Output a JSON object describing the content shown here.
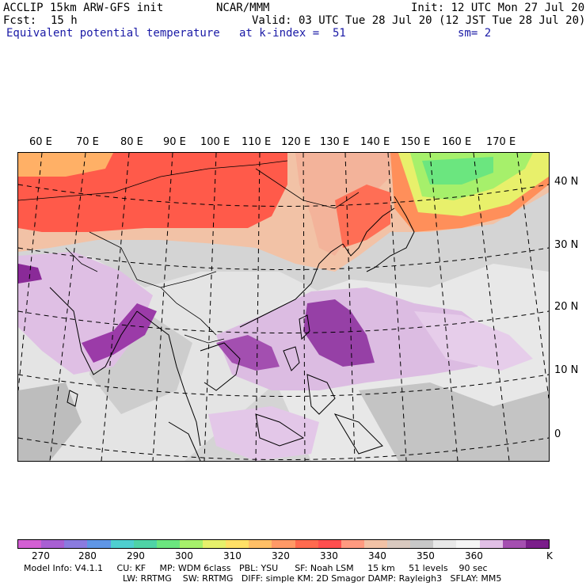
{
  "header": {
    "model": "ACCLIP 15km ARW-GFS init",
    "org": "NCAR/MMM",
    "init": "Init: 12 UTC Mon 27 Jul 20",
    "fcst_label": "Fcst:",
    "fcst_value": "15 h",
    "valid": "Valid: 03 UTC Tue 28 Jul 20 (12 JST Tue 28 Jul 20)",
    "field": "Equivalent potential temperature",
    "level": "at k-index =  51",
    "smooth": "sm= 2"
  },
  "map": {
    "lon_labels": [
      "60 E",
      "70 E",
      "80 E",
      "90 E",
      "100 E",
      "110 E",
      "120 E",
      "130 E",
      "140 E",
      "150 E",
      "160 E",
      "170 E"
    ],
    "lat_labels": [
      "40 N",
      "30 N",
      "20 N",
      "10 N",
      "0"
    ]
  },
  "colorbar": {
    "colors": [
      "#d35fd3",
      "#a85fd3",
      "#8a7be0",
      "#5f96e6",
      "#4fcfcf",
      "#4fd3a6",
      "#6be67f",
      "#a6f06b",
      "#e6f06b",
      "#ffe066",
      "#ffbf66",
      "#ff9966",
      "#ff6a4f",
      "#ff4f4f",
      "#ff9a80",
      "#f2c2a6",
      "#d9c9bf",
      "#c8c8c8",
      "#e8e8e8",
      "#f5f5f5",
      "#e1bfe6",
      "#a44fb0",
      "#7a1e8a"
    ],
    "ticks": [
      "270",
      "280",
      "290",
      "300",
      "310",
      "320",
      "330",
      "340",
      "350",
      "360",
      "K"
    ],
    "unit": "K"
  },
  "footer": {
    "line1": "Model Info: V4.1.1     CU: KF     MP: WDM 6class   PBL: YSU      SF: Noah LSM     15 km     51 levels    90 sec",
    "line2": "LW: RRTMG    SW: RRTMG   DIFF: simple KM: 2D Smagor DAMP: Rayleigh3   SFLAY: MM5"
  }
}
